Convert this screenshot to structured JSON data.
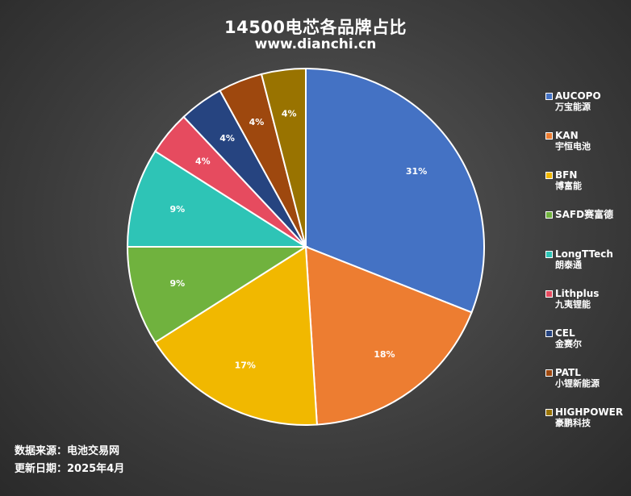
{
  "header": {
    "title": "14500电芯各品牌占比",
    "subtitle": "www.dianchi.cn"
  },
  "chart_data": {
    "type": "pie",
    "title": "14500电芯各品牌占比",
    "legend_position": "right",
    "slices": [
      {
        "name": "AUCOPO",
        "subname": "万宝能源",
        "value": 31,
        "label": "31%",
        "color": "#4472C4"
      },
      {
        "name": "KAN",
        "subname": "宇恒电池",
        "value": 18,
        "label": "18%",
        "color": "#ED7D31"
      },
      {
        "name": "BFN",
        "subname": "博富能",
        "value": 17,
        "label": "17%",
        "color": "#F1B800"
      },
      {
        "name": "SAFD赛富德",
        "subname": "",
        "value": 9,
        "label": "9%",
        "color": "#70B23E"
      },
      {
        "name": "LongTTech",
        "subname": "朗泰通",
        "value": 9,
        "label": "9%",
        "color": "#2EC4B6"
      },
      {
        "name": "Lithplus",
        "subname": "九夷锂能",
        "value": 4,
        "label": "4%",
        "color": "#E64B5F"
      },
      {
        "name": "CEL",
        "subname": "金赛尔",
        "value": 4,
        "label": "4%",
        "color": "#264480"
      },
      {
        "name": "PATL",
        "subname": "小锂新能源",
        "value": 4,
        "label": "4%",
        "color": "#9E480E"
      },
      {
        "name": "HIGHPOWER",
        "subname": "豪鹏科技",
        "value": 4,
        "label": "4%",
        "color": "#997300"
      }
    ]
  },
  "footer": {
    "source": "数据来源：电池交易网",
    "updated": "更新日期：2025年4月"
  }
}
